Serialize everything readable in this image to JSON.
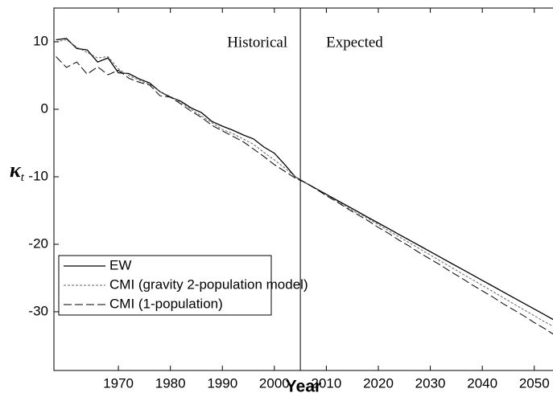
{
  "chart_data": {
    "type": "line",
    "x_label": "Year",
    "y_label": "κ",
    "y_label_sub": "t",
    "annotations": [
      "Historical",
      "Expected"
    ],
    "divider_x": 2005,
    "xlim": [
      1957.6,
      2053.6
    ],
    "ylim": [
      -38.7,
      15
    ],
    "xticks": [
      1970,
      1980,
      1990,
      2000,
      2010,
      2020,
      2030,
      2040,
      2050
    ],
    "yticks": [
      10,
      0,
      -10,
      -20,
      -30
    ],
    "legend": "lower left",
    "x": [
      1958,
      1960,
      1962,
      1964,
      1966,
      1968,
      1970,
      1972,
      1974,
      1976,
      1978,
      1980,
      1982,
      1984,
      1986,
      1988,
      1990,
      1992,
      1994,
      1996,
      1998,
      2000,
      2002,
      2004,
      2006,
      2008,
      2010,
      2012,
      2014,
      2016,
      2018,
      2020,
      2022,
      2024,
      2026,
      2028,
      2030,
      2032,
      2034,
      2036,
      2038,
      2040,
      2042,
      2044,
      2046,
      2048,
      2050,
      2052,
      2054
    ],
    "series": [
      {
        "name": "EW",
        "color": "#000000",
        "dash": "none",
        "values": [
          10.3,
          10.5,
          9.0,
          8.8,
          7.0,
          7.6,
          5.4,
          5.3,
          4.5,
          3.9,
          2.6,
          1.8,
          1.2,
          0.2,
          -0.5,
          -1.8,
          -2.5,
          -3.1,
          -3.8,
          -4.4,
          -5.6,
          -6.5,
          -8.2,
          -10.0,
          -10.9,
          -11.75,
          -12.6,
          -13.45,
          -14.3,
          -15.15,
          -16.0,
          -16.85,
          -17.7,
          -18.55,
          -19.4,
          -20.25,
          -21.1,
          -21.95,
          -22.8,
          -23.65,
          -24.5,
          -25.35,
          -26.2,
          -27.05,
          -27.9,
          -28.75,
          -29.6,
          -30.45,
          -31.3
        ]
      },
      {
        "name": "CMI (gravity 2-population model)",
        "color": "#666666",
        "dash": "3,2",
        "values": [
          10.0,
          10.3,
          9.2,
          8.4,
          7.6,
          7.8,
          6.0,
          5.0,
          4.3,
          3.7,
          2.6,
          1.9,
          1.0,
          0.0,
          -1.0,
          -2.0,
          -3.0,
          -3.6,
          -4.4,
          -5.2,
          -6.4,
          -7.5,
          -8.7,
          -10.0,
          -10.9,
          -11.8,
          -12.7,
          -13.6,
          -14.5,
          -15.4,
          -16.2,
          -17.1,
          -18.0,
          -18.9,
          -19.8,
          -20.7,
          -21.6,
          -22.5,
          -23.4,
          -24.3,
          -25.2,
          -26.1,
          -27.0,
          -27.9,
          -28.8,
          -29.7,
          -30.6,
          -31.5,
          -32.3
        ]
      },
      {
        "name": "CMI (1-population)",
        "color": "#000000",
        "dash": "10,4",
        "values": [
          7.8,
          6.2,
          7.0,
          5.2,
          6.3,
          5.1,
          5.8,
          4.6,
          4.0,
          3.6,
          2.0,
          1.8,
          0.8,
          -0.3,
          -1.2,
          -2.4,
          -3.2,
          -4.0,
          -4.8,
          -5.9,
          -7.0,
          -8.2,
          -9.2,
          -10.2,
          -10.9,
          -11.8,
          -12.8,
          -13.7,
          -14.7,
          -15.6,
          -16.5,
          -17.5,
          -18.4,
          -19.4,
          -20.3,
          -21.3,
          -22.2,
          -23.1,
          -24.1,
          -25.0,
          -26.0,
          -26.9,
          -27.8,
          -28.8,
          -29.7,
          -30.6,
          -31.6,
          -32.5,
          -33.5
        ]
      }
    ]
  }
}
